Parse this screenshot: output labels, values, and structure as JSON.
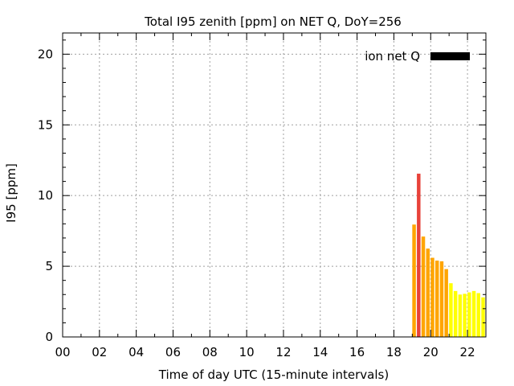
{
  "chart_data": {
    "type": "bar",
    "title": "Total I95 zenith [ppm] on NET Q, DoY=256",
    "xlabel": "Time of day UTC (15-minute intervals)",
    "ylabel": "I95 [ppm]",
    "xlim": [
      0,
      23
    ],
    "ylim": [
      0,
      21.5
    ],
    "x_ticks": [
      0,
      2,
      4,
      6,
      8,
      10,
      12,
      14,
      16,
      18,
      20,
      22
    ],
    "x_tick_labels": [
      "00",
      "02",
      "04",
      "06",
      "08",
      "10",
      "12",
      "14",
      "16",
      "18",
      "20",
      "22"
    ],
    "y_ticks": [
      0,
      5,
      10,
      15,
      20
    ],
    "y_tick_labels": [
      "0",
      "5",
      "10",
      "15",
      "20"
    ],
    "grid": true,
    "legend": {
      "position": "top-right",
      "label": "ion net Q",
      "color": "#000000"
    },
    "bar_interval_hours": 0.25,
    "series": [
      {
        "name": "ion net Q",
        "x": [
          19.0,
          19.25,
          19.5,
          19.75,
          20.0,
          20.25,
          20.5,
          20.75,
          21.0,
          21.25,
          21.5,
          21.75,
          22.0,
          22.25,
          22.5,
          22.75
        ],
        "values": [
          7.95,
          11.55,
          7.1,
          6.25,
          5.6,
          5.4,
          5.35,
          4.8,
          3.8,
          3.25,
          3.0,
          3.05,
          3.15,
          3.25,
          3.1,
          2.8
        ]
      }
    ],
    "colors": {
      "low": "#ffff00",
      "medium": "#ffa500",
      "high": "#e8423a",
      "thresholds": [
        4,
        10
      ]
    }
  }
}
